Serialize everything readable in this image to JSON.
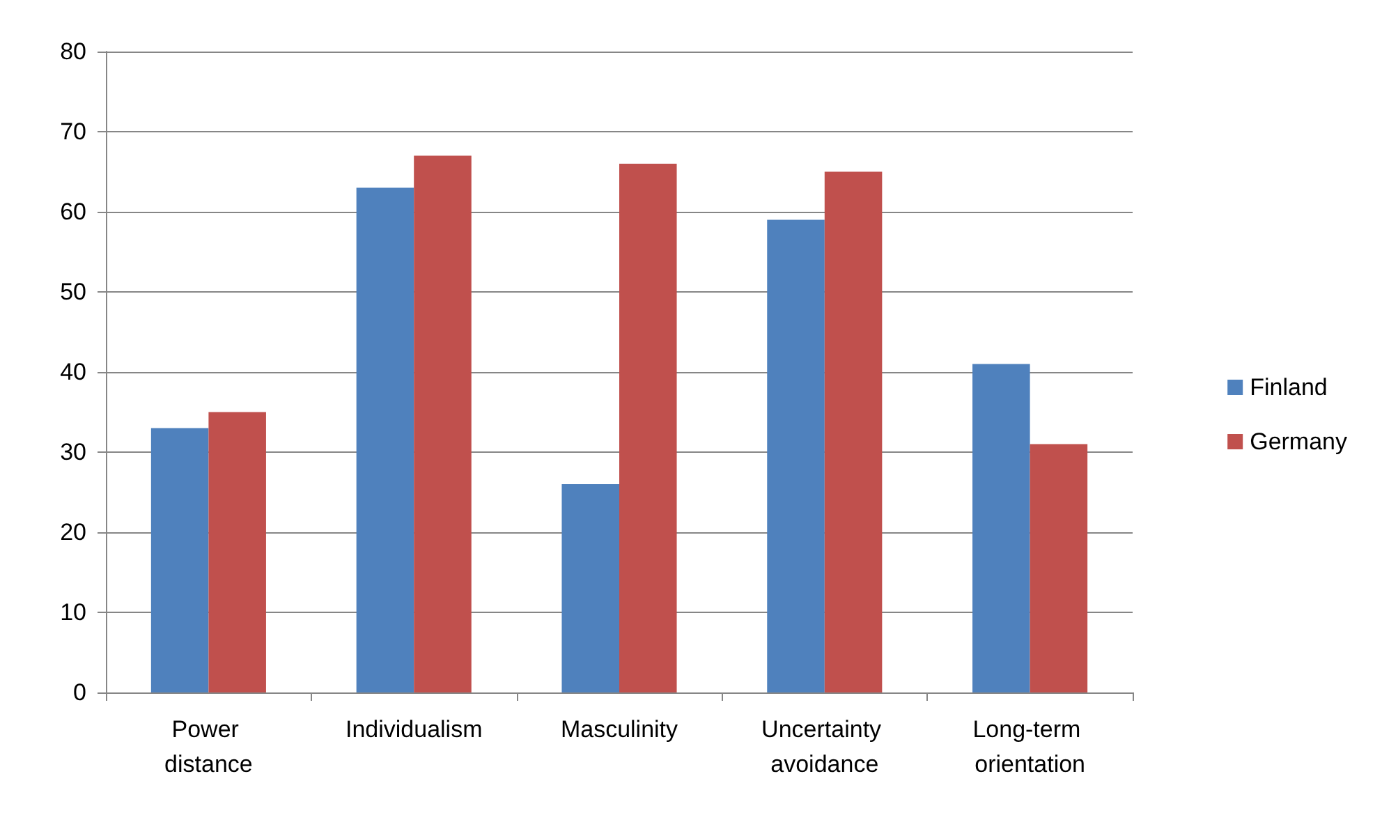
{
  "chart_data": {
    "type": "bar",
    "categories": [
      "Power distance",
      "Individualism",
      "Masculinity",
      "Uncertainty avoidance",
      "Long-term orientation"
    ],
    "series": [
      {
        "name": "Finland",
        "color": "#4f81bd",
        "values": [
          33,
          63,
          26,
          59,
          41
        ]
      },
      {
        "name": "Germany",
        "color": "#c0504d",
        "values": [
          35,
          67,
          66,
          65,
          31
        ]
      }
    ],
    "ylim": [
      0,
      80
    ],
    "yticks": [
      0,
      10,
      20,
      30,
      40,
      50,
      60,
      70,
      80
    ],
    "grid": "y",
    "legend": "right"
  }
}
